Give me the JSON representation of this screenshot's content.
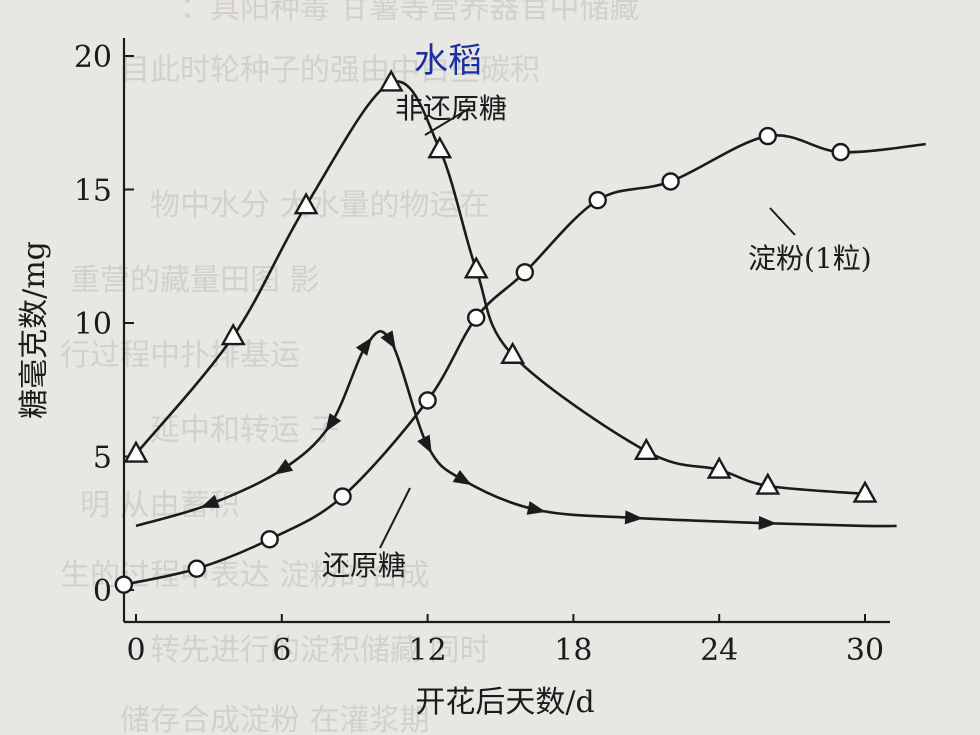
{
  "chart_data": {
    "type": "line",
    "title": "水稻",
    "xlabel": "开花后天数/d",
    "ylabel": "糖毫克数/mg",
    "xlim": [
      0,
      31
    ],
    "ylim": [
      0,
      21
    ],
    "xticks": [
      0,
      6,
      12,
      18,
      24,
      30
    ],
    "yticks": [
      0,
      5,
      10,
      15,
      20
    ],
    "grid": false,
    "series": [
      {
        "name": "非还原糖",
        "marker": "triangle",
        "points": [
          [
            0,
            5.1
          ],
          [
            4,
            9.5
          ],
          [
            7,
            14.4
          ],
          [
            10.5,
            19.0
          ],
          [
            12.5,
            16.5
          ],
          [
            14,
            12.0
          ],
          [
            15.5,
            8.8
          ],
          [
            21,
            5.2
          ],
          [
            24,
            4.5
          ],
          [
            26,
            3.9
          ],
          [
            30,
            3.6
          ]
        ]
      },
      {
        "name": "淀粉(1粒)",
        "marker": "circle",
        "points": [
          [
            -0.5,
            0.2
          ],
          [
            2.5,
            0.8
          ],
          [
            5.5,
            1.9
          ],
          [
            8.5,
            3.5
          ],
          [
            12,
            7.1
          ],
          [
            14,
            10.2
          ],
          [
            16,
            11.9
          ],
          [
            19,
            14.6
          ],
          [
            22,
            15.3
          ],
          [
            26,
            17.0
          ],
          [
            29,
            16.4
          ]
        ]
      },
      {
        "name": "还原糖",
        "marker": "arrow",
        "points": [
          [
            0,
            2.4
          ],
          [
            3,
            3.2
          ],
          [
            6,
            4.5
          ],
          [
            8,
            6.2
          ],
          [
            9.5,
            9.2
          ],
          [
            10.5,
            9.3
          ],
          [
            12,
            5.4
          ],
          [
            13.5,
            4.1
          ],
          [
            16.5,
            3.0
          ],
          [
            20.5,
            2.7
          ],
          [
            26,
            2.5
          ],
          [
            30,
            2.4
          ]
        ]
      }
    ]
  },
  "labels": {
    "nonreducing": "非还原糖",
    "starch": "淀粉(1粒)",
    "reducing": "还原糖"
  }
}
